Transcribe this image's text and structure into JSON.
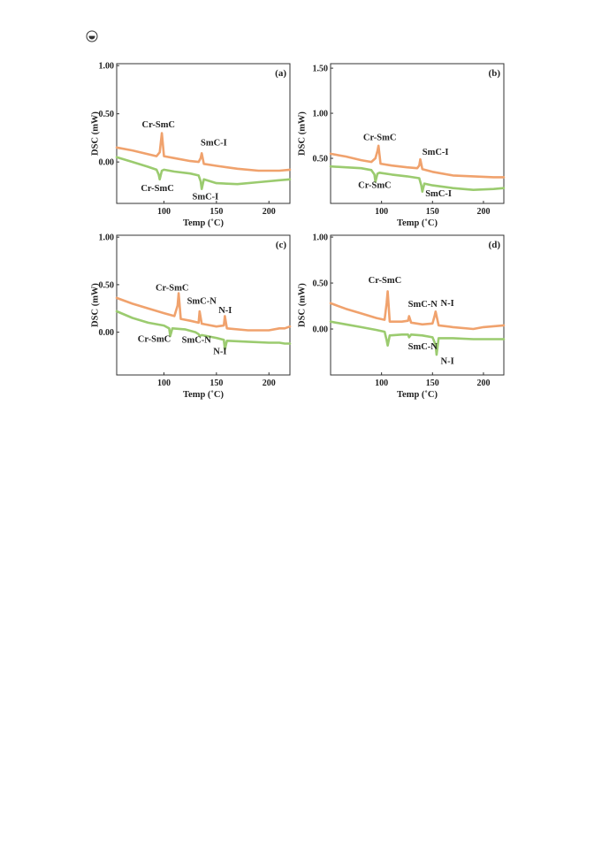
{
  "logo": {
    "icon": "publisher-logo-icon"
  },
  "colors": {
    "heating": "#f0a26d",
    "cooling": "#9bcb6f",
    "axis": "#333333"
  },
  "chart_data": [
    {
      "type": "line",
      "panel_label": "(a)",
      "xlabel": "Temp (˚C)",
      "ylabel": "DSC (mW)",
      "xlim": [
        55,
        220
      ],
      "ylim": [
        -0.43,
        1.02
      ],
      "xticks": [
        "100",
        "150",
        "200"
      ],
      "yticks": [
        "0.00",
        "0.50",
        "1.00"
      ],
      "series": [
        {
          "color": "#f0a26d",
          "x": [
            55,
            70,
            85,
            93,
            96,
            97,
            98,
            100,
            110,
            125,
            133,
            135,
            136,
            138,
            150,
            170,
            190,
            210,
            220
          ],
          "y": [
            0.15,
            0.12,
            0.08,
            0.06,
            0.1,
            0.2,
            0.3,
            0.06,
            0.04,
            0.01,
            0.0,
            0.04,
            0.09,
            -0.02,
            -0.04,
            -0.07,
            -0.09,
            -0.09,
            -0.08
          ]
        },
        {
          "color": "#9bcb6f",
          "x": [
            55,
            70,
            85,
            93,
            95,
            96,
            98,
            100,
            110,
            125,
            133,
            135,
            136,
            138,
            150,
            170,
            190,
            210,
            220
          ],
          "y": [
            0.05,
            0.0,
            -0.05,
            -0.08,
            -0.13,
            -0.18,
            -0.09,
            -0.08,
            -0.1,
            -0.12,
            -0.14,
            -0.2,
            -0.28,
            -0.18,
            -0.22,
            -0.23,
            -0.21,
            -0.19,
            -0.18
          ]
        }
      ],
      "annotations": [
        {
          "text": "Cr-SmC",
          "x": 79,
          "y": 0.36
        },
        {
          "text": "SmC-I",
          "x": 135,
          "y": 0.17
        },
        {
          "text": "Cr-SmC",
          "x": 78,
          "y": -0.3
        },
        {
          "text": "SmC-I",
          "x": 127,
          "y": -0.39
        }
      ]
    },
    {
      "type": "line",
      "panel_label": "(b)",
      "xlabel": "Temp (˚C)",
      "ylabel": "DSC (mW)",
      "xlim": [
        50,
        220
      ],
      "ylim": [
        0.0,
        1.55
      ],
      "xticks": [
        "100",
        "150",
        "200"
      ],
      "yticks": [
        "0.50",
        "1.00",
        "1.50"
      ],
      "series": [
        {
          "color": "#f0a26d",
          "x": [
            50,
            65,
            80,
            90,
            94,
            96,
            97,
            99,
            110,
            125,
            135,
            137,
            138,
            140,
            150,
            170,
            190,
            210,
            220
          ],
          "y": [
            0.55,
            0.52,
            0.48,
            0.46,
            0.5,
            0.58,
            0.64,
            0.44,
            0.42,
            0.4,
            0.39,
            0.42,
            0.49,
            0.38,
            0.35,
            0.31,
            0.3,
            0.29,
            0.29
          ]
        },
        {
          "color": "#9bcb6f",
          "x": [
            50,
            65,
            80,
            90,
            93,
            94,
            96,
            98,
            110,
            125,
            137,
            139,
            140,
            142,
            150,
            170,
            190,
            210,
            220
          ],
          "y": [
            0.41,
            0.4,
            0.39,
            0.37,
            0.32,
            0.24,
            0.33,
            0.34,
            0.32,
            0.3,
            0.28,
            0.2,
            0.13,
            0.22,
            0.2,
            0.17,
            0.15,
            0.16,
            0.17
          ]
        }
      ],
      "annotations": [
        {
          "text": "Cr-SmC",
          "x": 82,
          "y": 0.7
        },
        {
          "text": "SmC-I",
          "x": 140,
          "y": 0.54
        },
        {
          "text": "Cr-SmC",
          "x": 77,
          "y": 0.17
        },
        {
          "text": "SmC-I",
          "x": 143,
          "y": 0.08
        }
      ]
    },
    {
      "type": "line",
      "panel_label": "(c)",
      "xlabel": "Temp (˚C)",
      "ylabel": "DSC (mW)",
      "xlim": [
        55,
        220
      ],
      "ylim": [
        -0.45,
        1.02
      ],
      "xticks": [
        "100",
        "150",
        "200"
      ],
      "yticks": [
        "0.00",
        "0.50",
        "1.00"
      ],
      "series": [
        {
          "color": "#f0a26d",
          "x": [
            55,
            70,
            85,
            100,
            110,
            113,
            114,
            116,
            125,
            133,
            134,
            136,
            150,
            157,
            158,
            160,
            180,
            200,
            210,
            215,
            220
          ],
          "y": [
            0.36,
            0.3,
            0.25,
            0.2,
            0.17,
            0.28,
            0.41,
            0.14,
            0.12,
            0.1,
            0.22,
            0.09,
            0.06,
            0.07,
            0.17,
            0.04,
            0.02,
            0.02,
            0.04,
            0.04,
            0.06
          ]
        },
        {
          "color": "#9bcb6f",
          "x": [
            55,
            70,
            85,
            100,
            105,
            106,
            108,
            120,
            130,
            133,
            134,
            136,
            150,
            157,
            158,
            160,
            180,
            200,
            210,
            215,
            220
          ],
          "y": [
            0.22,
            0.15,
            0.1,
            0.07,
            0.04,
            -0.04,
            0.04,
            0.03,
            0.0,
            -0.02,
            -0.04,
            -0.03,
            -0.06,
            -0.08,
            -0.18,
            -0.09,
            -0.1,
            -0.11,
            -0.11,
            -0.12,
            -0.12
          ]
        }
      ],
      "annotations": [
        {
          "text": "Cr-SmC",
          "x": 92,
          "y": 0.44
        },
        {
          "text": "SmC-N",
          "x": 122,
          "y": 0.3
        },
        {
          "text": "N-I",
          "x": 152,
          "y": 0.2
        },
        {
          "text": "Cr-SmC",
          "x": 75,
          "y": -0.1
        },
        {
          "text": "SmC-N",
          "x": 117,
          "y": -0.11
        },
        {
          "text": "N-I",
          "x": 147,
          "y": -0.23
        }
      ]
    },
    {
      "type": "line",
      "panel_label": "(d)",
      "xlabel": "Temp (˚C)",
      "ylabel": "DSC (mW)",
      "xlim": [
        50,
        220
      ],
      "ylim": [
        -0.5,
        1.02
      ],
      "xticks": [
        "100",
        "150",
        "200"
      ],
      "yticks": [
        "0.00",
        "0.50",
        "1.00"
      ],
      "series": [
        {
          "color": "#f0a26d",
          "x": [
            50,
            65,
            80,
            95,
            103,
            105,
            106,
            108,
            120,
            126,
            127,
            129,
            140,
            150,
            152,
            153,
            156,
            170,
            190,
            200,
            220
          ],
          "y": [
            0.28,
            0.22,
            0.17,
            0.12,
            0.1,
            0.28,
            0.41,
            0.08,
            0.08,
            0.09,
            0.14,
            0.07,
            0.05,
            0.06,
            0.14,
            0.19,
            0.04,
            0.02,
            0.0,
            0.02,
            0.04
          ]
        },
        {
          "color": "#9bcb6f",
          "x": [
            50,
            65,
            80,
            95,
            103,
            105,
            106,
            108,
            120,
            126,
            127,
            129,
            140,
            150,
            153,
            154,
            156,
            170,
            190,
            200,
            220
          ],
          "y": [
            0.08,
            0.05,
            0.02,
            -0.01,
            -0.03,
            -0.12,
            -0.18,
            -0.07,
            -0.06,
            -0.06,
            -0.09,
            -0.06,
            -0.07,
            -0.09,
            -0.17,
            -0.28,
            -0.1,
            -0.1,
            -0.11,
            -0.11,
            -0.11
          ]
        }
      ],
      "annotations": [
        {
          "text": "Cr-SmC",
          "x": 87,
          "y": 0.5
        },
        {
          "text": "SmC-N",
          "x": 126,
          "y": 0.24
        },
        {
          "text": "N-I",
          "x": 158,
          "y": 0.25
        },
        {
          "text": "SmC-N",
          "x": 126,
          "y": -0.22
        },
        {
          "text": "N-I",
          "x": 158,
          "y": -0.38
        }
      ]
    }
  ]
}
